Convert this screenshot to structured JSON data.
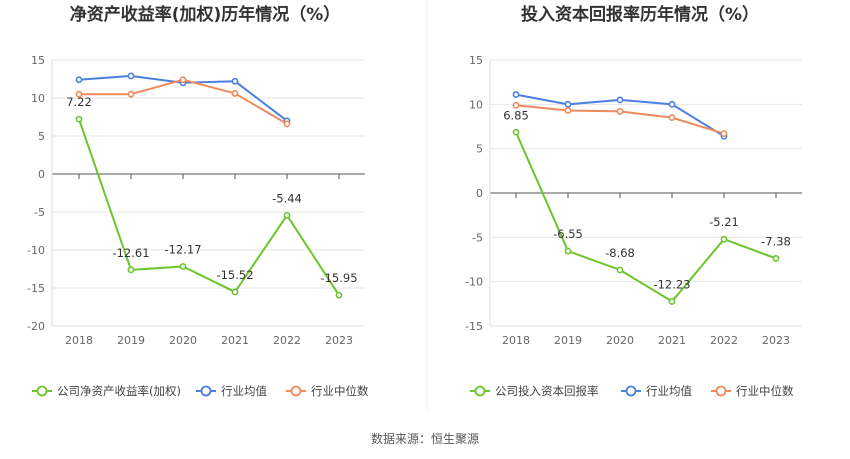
{
  "charts": [
    {
      "title": "净资产收益率(加权)历年情况（%）",
      "legend": [
        "公司净资产收益率(加权)",
        "行业均值",
        "行业中位数"
      ]
    },
    {
      "title": "投入资本回报率历年情况（%）",
      "legend": [
        "公司投入资本回报率",
        "行业均值",
        "行业中位数"
      ]
    }
  ],
  "source": "数据来源：恒生聚源",
  "colors": {
    "company": "#6cc52c",
    "avg": "#4a7fe0",
    "median": "#f08a5d",
    "grid": "#e6e6e6",
    "axis": "#999999"
  },
  "chart_data": [
    {
      "type": "line",
      "title": "净资产收益率(加权)历年情况（%）",
      "categories": [
        "2018",
        "2019",
        "2020",
        "2021",
        "2022",
        "2023"
      ],
      "ylim": [
        -20,
        15
      ],
      "yticks": [
        15,
        10,
        5,
        0,
        -5,
        -10,
        -15,
        -20
      ],
      "series": [
        {
          "name": "公司净资产收益率(加权)",
          "values": [
            7.22,
            -12.61,
            -12.17,
            -15.52,
            -5.44,
            -15.95
          ],
          "labels": [
            "7.22",
            "-12.61",
            "-12.17",
            "-15.52",
            "-5.44",
            "-15.95"
          ]
        },
        {
          "name": "行业均值",
          "values": [
            12.4,
            12.9,
            12.0,
            12.2,
            7.0,
            null
          ]
        },
        {
          "name": "行业中位数",
          "values": [
            10.5,
            10.5,
            12.4,
            10.6,
            6.6,
            null
          ]
        }
      ]
    },
    {
      "type": "line",
      "title": "投入资本回报率历年情况（%）",
      "categories": [
        "2018",
        "2019",
        "2020",
        "2021",
        "2022",
        "2023"
      ],
      "ylim": [
        -15,
        15
      ],
      "yticks": [
        15,
        10,
        5,
        0,
        -5,
        -10,
        -15
      ],
      "series": [
        {
          "name": "公司投入资本回报率",
          "values": [
            6.85,
            -6.55,
            -8.68,
            -12.23,
            -5.21,
            -7.38
          ],
          "labels": [
            "6.85",
            "-6.55",
            "-8.68",
            "-12.23",
            "-5.21",
            "-7.38"
          ]
        },
        {
          "name": "行业均值",
          "values": [
            11.1,
            10.0,
            10.5,
            10.0,
            6.4,
            null
          ]
        },
        {
          "name": "行业中位数",
          "values": [
            9.9,
            9.3,
            9.2,
            8.5,
            6.7,
            null
          ]
        }
      ]
    }
  ]
}
